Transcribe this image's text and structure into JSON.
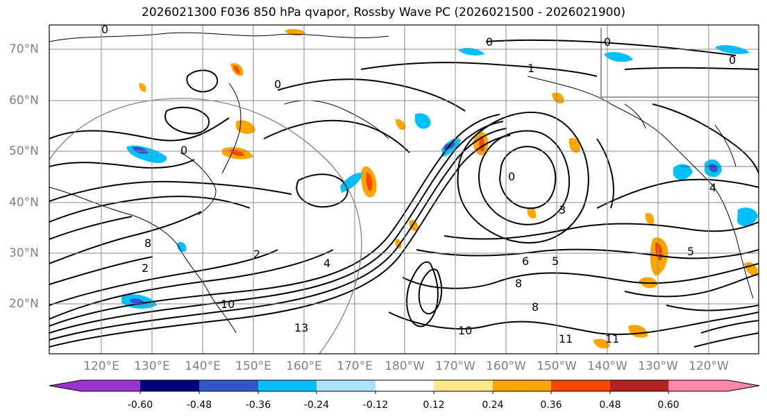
{
  "title": "2026021300 F036 850 hPa qvapor, Rossby Wave PC (2026021500 - 2026021900)",
  "lat_labels": [
    "70°N",
    "60°N",
    "50°N",
    "40°N",
    "30°N",
    "20°N"
  ],
  "lon_labels": [
    "120°E",
    "130°E",
    "140°E",
    "150°E",
    "160°E",
    "170°E",
    "180°W",
    "170°W",
    "160°W",
    "150°W",
    "140°W",
    "130°W",
    "120°W"
  ],
  "colorbar": {
    "ticks": [
      "-0.60",
      "-0.48",
      "-0.36",
      "-0.24",
      "-0.12",
      "0.12",
      "0.24",
      "0.36",
      "0.48",
      "0.60"
    ],
    "colors": [
      "#9933cc",
      "#000080",
      "#3355cc",
      "#00bfff",
      "#aee4fb",
      "#ffffff",
      "#ffe88a",
      "#ffa500",
      "#ff4500",
      "#b22222",
      "#ff88aa"
    ]
  },
  "contour_labels": [
    "0",
    "0",
    "0",
    "0",
    "1",
    "0",
    "0",
    "0",
    "2",
    "2",
    "3",
    "4",
    "5",
    "6",
    "8",
    "10",
    "10",
    "11",
    "11",
    "13",
    "8",
    "8",
    "5",
    "4"
  ],
  "colors": {
    "grid": "#8a8a8a",
    "contour": "#000000",
    "coast": "#000000",
    "positive_low": "#ffa500",
    "positive_high": "#ff4500",
    "negative_low": "#00bfff",
    "negative_high": "#3355cc"
  }
}
